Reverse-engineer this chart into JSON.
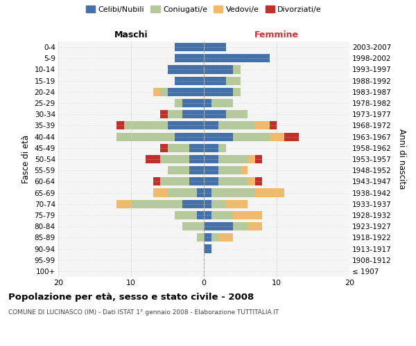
{
  "age_groups": [
    "100+",
    "95-99",
    "90-94",
    "85-89",
    "80-84",
    "75-79",
    "70-74",
    "65-69",
    "60-64",
    "55-59",
    "50-54",
    "45-49",
    "40-44",
    "35-39",
    "30-34",
    "25-29",
    "20-24",
    "15-19",
    "10-14",
    "5-9",
    "0-4"
  ],
  "year_ranges": [
    "≤ 1907",
    "1908-1912",
    "1913-1917",
    "1918-1922",
    "1923-1927",
    "1928-1932",
    "1933-1937",
    "1938-1942",
    "1943-1947",
    "1948-1952",
    "1953-1957",
    "1958-1962",
    "1963-1967",
    "1968-1972",
    "1973-1977",
    "1978-1982",
    "1983-1987",
    "1988-1992",
    "1993-1997",
    "1998-2002",
    "2003-2007"
  ],
  "colors": {
    "celibi": "#4472a8",
    "coniugati": "#b5c99a",
    "vedovi": "#f0b96b",
    "divorziati": "#c0302a"
  },
  "maschi": {
    "celibi": [
      0,
      0,
      0,
      0,
      0,
      1,
      3,
      1,
      2,
      2,
      2,
      2,
      4,
      5,
      3,
      3,
      5,
      4,
      5,
      4,
      4
    ],
    "coniugati": [
      0,
      0,
      0,
      1,
      3,
      3,
      7,
      4,
      4,
      3,
      4,
      3,
      8,
      6,
      2,
      1,
      1,
      0,
      0,
      0,
      0
    ],
    "vedovi": [
      0,
      0,
      0,
      0,
      0,
      0,
      2,
      2,
      0,
      0,
      0,
      0,
      0,
      0,
      0,
      0,
      1,
      0,
      0,
      0,
      0
    ],
    "divorziati": [
      0,
      0,
      0,
      0,
      0,
      0,
      0,
      0,
      1,
      0,
      2,
      1,
      0,
      1,
      1,
      0,
      0,
      0,
      0,
      0,
      0
    ]
  },
  "femmine": {
    "celibi": [
      0,
      0,
      1,
      1,
      4,
      1,
      1,
      1,
      2,
      2,
      2,
      2,
      4,
      2,
      3,
      1,
      4,
      3,
      4,
      9,
      3
    ],
    "coniugati": [
      0,
      0,
      0,
      1,
      2,
      3,
      2,
      6,
      4,
      3,
      4,
      1,
      5,
      5,
      3,
      3,
      1,
      2,
      1,
      0,
      0
    ],
    "vedovi": [
      0,
      0,
      0,
      2,
      2,
      4,
      3,
      4,
      1,
      1,
      1,
      0,
      2,
      2,
      0,
      0,
      0,
      0,
      0,
      0,
      0
    ],
    "divorziati": [
      0,
      0,
      0,
      0,
      0,
      0,
      0,
      0,
      1,
      0,
      1,
      0,
      2,
      1,
      0,
      0,
      0,
      0,
      0,
      0,
      0
    ]
  },
  "xlim": [
    -20,
    20
  ],
  "xticks": [
    -20,
    -10,
    0,
    10,
    20
  ],
  "xticklabels": [
    "20",
    "10",
    "0",
    "10",
    "20"
  ],
  "title": "Popolazione per età, sesso e stato civile - 2008",
  "subtitle": "COMUNE DI LUCINASCO (IM) - Dati ISTAT 1° gennaio 2008 - Elaborazione TUTTITALIA.IT",
  "ylabel_left": "Fasce di età",
  "ylabel_right": "Anni di nascita",
  "legend_labels": [
    "Celibi/Nubili",
    "Coniugati/e",
    "Vedovi/e",
    "Divorziati/e"
  ],
  "bg_color": "#f5f5f5",
  "grid_color": "#cccccc"
}
